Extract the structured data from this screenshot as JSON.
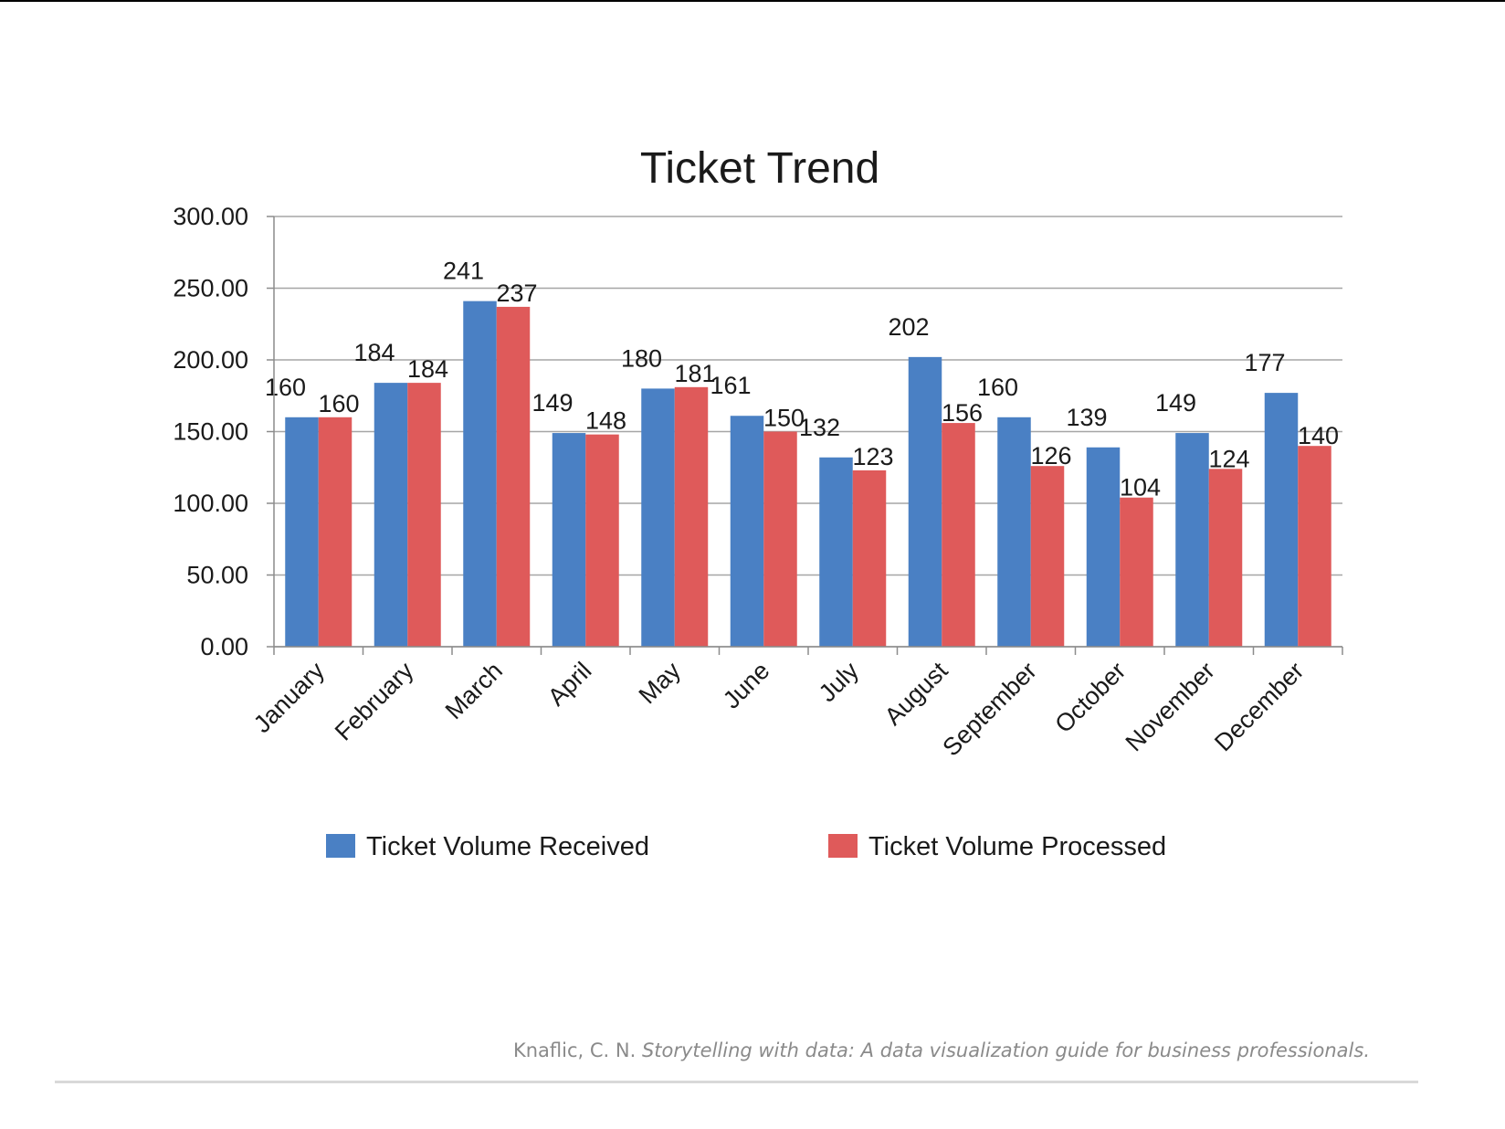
{
  "chart_data": {
    "type": "bar",
    "title": "Ticket Trend",
    "categories": [
      "January",
      "February",
      "March",
      "April",
      "May",
      "June",
      "July",
      "August",
      "September",
      "October",
      "November",
      "December"
    ],
    "series": [
      {
        "name": "Ticket Volume Received",
        "color": "#4a80c4",
        "values": [
          160,
          184,
          241,
          149,
          180,
          161,
          132,
          202,
          160,
          139,
          149,
          177
        ]
      },
      {
        "name": "Ticket Volume Processed",
        "color": "#df5a5a",
        "values": [
          160,
          184,
          237,
          148,
          181,
          150,
          123,
          156,
          126,
          104,
          124,
          140
        ]
      }
    ],
    "ylim": [
      0,
      300
    ],
    "yticks": [
      "0.00",
      "50.00",
      "100.00",
      "150.00",
      "200.00",
      "250.00",
      "300.00"
    ],
    "grid": true,
    "legend_position": "bottom"
  },
  "citation": {
    "author": "Knaflic, C. N.",
    "work": "Storytelling with data: A data visualization guide for business professionals."
  }
}
